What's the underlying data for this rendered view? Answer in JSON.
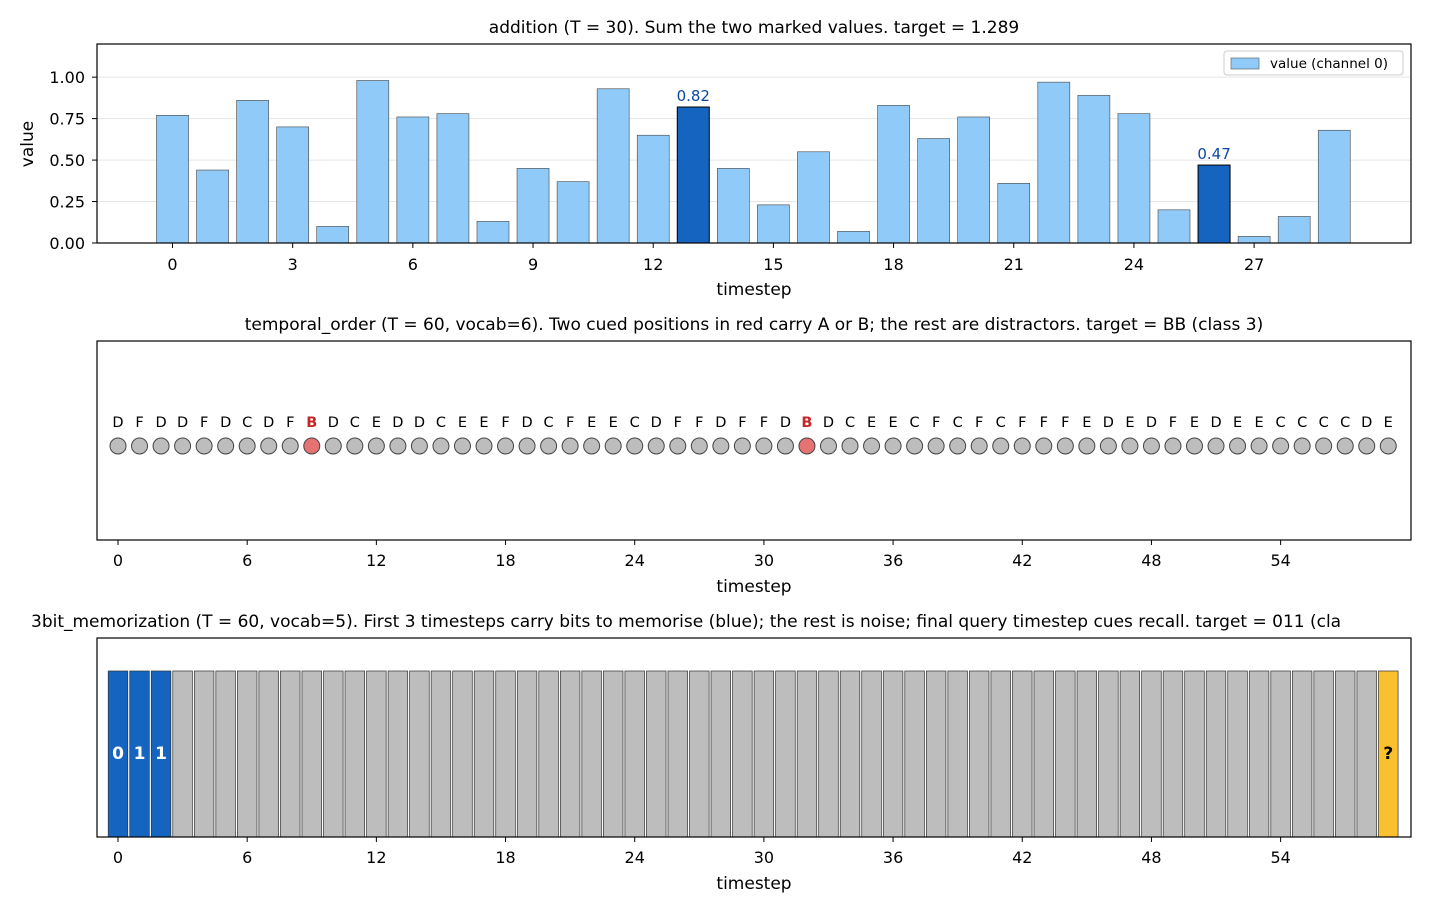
{
  "chart_data": [
    {
      "type": "bar",
      "title": "addition  (T = 30). Sum the two marked values.  target = 1.289",
      "xlabel": "timestep",
      "ylabel": "value",
      "ylim": [
        0,
        1.2
      ],
      "yticks": [
        "0.00",
        "0.25",
        "0.50",
        "0.75",
        "1.00"
      ],
      "xticks": [
        0,
        3,
        6,
        9,
        12,
        15,
        18,
        21,
        24,
        27
      ],
      "legend": {
        "label": "value (channel 0)",
        "placement": "top-right"
      },
      "grid": "y",
      "colors": {
        "bar": "#90caf9",
        "marked": "#1565c0",
        "annotation": "#0d47a1"
      },
      "values": [
        0.77,
        0.44,
        0.86,
        0.7,
        0.1,
        0.98,
        0.76,
        0.78,
        0.13,
        0.45,
        0.37,
        0.93,
        0.65,
        0.82,
        0.45,
        0.23,
        0.55,
        0.07,
        0.83,
        0.63,
        0.76,
        0.36,
        0.97,
        0.89,
        0.78,
        0.2,
        0.47,
        0.04,
        0.16,
        0.68
      ],
      "marked": [
        13,
        26
      ],
      "annotations": [
        "0.82",
        "0.47"
      ]
    },
    {
      "type": "table",
      "title": "temporal_order  (T = 60, vocab=6). Two cued positions in red carry A or B; the rest are distractors.  target = BB (class 3)",
      "xlabel": "timestep",
      "xticks": [
        0,
        6,
        12,
        18,
        24,
        30,
        36,
        42,
        48,
        54
      ],
      "colors": {
        "token": "#bdbdbd",
        "cue": "#e57373",
        "cue_text": "#c62828"
      },
      "tokens": [
        "D",
        "F",
        "D",
        "D",
        "F",
        "D",
        "C",
        "D",
        "F",
        "B",
        "D",
        "C",
        "E",
        "D",
        "D",
        "C",
        "E",
        "E",
        "F",
        "D",
        "C",
        "F",
        "E",
        "E",
        "C",
        "D",
        "F",
        "F",
        "D",
        "F",
        "F",
        "D",
        "B",
        "D",
        "C",
        "E",
        "E",
        "C",
        "F",
        "C",
        "F",
        "C",
        "F",
        "F",
        "F",
        "E",
        "D",
        "E",
        "D",
        "F",
        "E",
        "D",
        "E",
        "E",
        "C",
        "C",
        "C",
        "C",
        "D",
        "E"
      ],
      "cued": [
        9,
        32
      ]
    },
    {
      "type": "table",
      "title": "3bit_memorization  (T = 60, vocab=5). First 3 timesteps carry bits to memorise (blue); the rest is noise; final query timestep cues recall.  target = 011 (cla",
      "xlabel": "timestep",
      "xticks": [
        0,
        6,
        12,
        18,
        24,
        30,
        36,
        42,
        48,
        54
      ],
      "colors": {
        "bit": "#1565c0",
        "noise": "#bdbdbd",
        "query": "#fbc02d"
      },
      "length": 60,
      "bits": [
        "0",
        "1",
        "1"
      ],
      "query_label": "?"
    }
  ]
}
